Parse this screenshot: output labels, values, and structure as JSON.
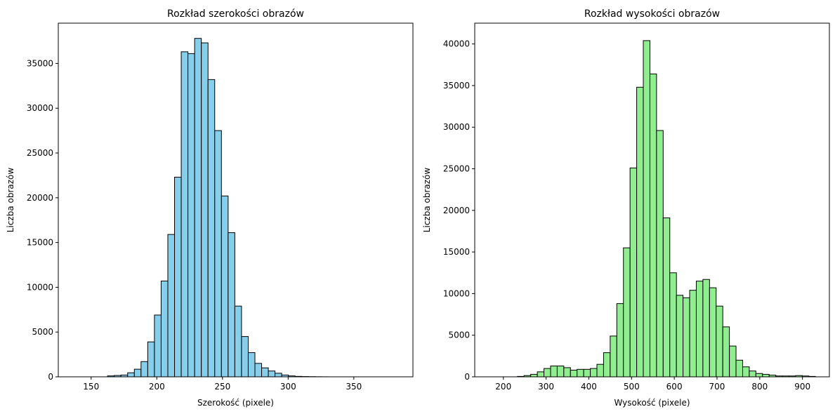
{
  "chart_data": [
    {
      "type": "bar",
      "subtype": "histogram",
      "title": "Rozkład szerokości obrazów",
      "xlabel": "Szerokość (pixele)",
      "ylabel": "Liczba obrazów",
      "xlim": [
        125,
        395
      ],
      "ylim": [
        0,
        39500
      ],
      "xticks": [
        150,
        200,
        250,
        300,
        350
      ],
      "yticks": [
        0,
        5000,
        10000,
        15000,
        20000,
        25000,
        30000,
        35000
      ],
      "bar_color": "#87CEEB",
      "edge_color": "#000000",
      "grid": false,
      "bins_start": 137,
      "bin_width": 5.1,
      "values": [
        0,
        0,
        0,
        0,
        0,
        100,
        150,
        200,
        450,
        850,
        1700,
        3900,
        6900,
        10700,
        15900,
        22300,
        36300,
        36100,
        37800,
        37300,
        33200,
        27500,
        20200,
        16100,
        7900,
        4500,
        2700,
        1500,
        1000,
        650,
        400,
        200,
        100,
        50,
        30,
        20,
        10,
        5,
        0,
        0,
        0,
        0,
        0,
        0,
        0,
        0,
        0,
        0,
        0,
        0
      ]
    },
    {
      "type": "bar",
      "subtype": "histogram",
      "title": "Rozkład wysokości obrazów",
      "xlabel": "Wysokość (pixele)",
      "ylabel": "Liczba obrazów",
      "xlim": [
        133,
        963
      ],
      "ylim": [
        0,
        42500
      ],
      "xticks": [
        200,
        300,
        400,
        500,
        600,
        700,
        800,
        900
      ],
      "yticks": [
        0,
        5000,
        10000,
        15000,
        20000,
        25000,
        30000,
        35000,
        40000
      ],
      "bar_color": "#90EE90",
      "edge_color": "#000000",
      "grid": false,
      "bins_start": 233,
      "bin_width": 15.5,
      "values": [
        50,
        150,
        300,
        600,
        1000,
        1300,
        1300,
        1100,
        800,
        900,
        900,
        1000,
        1500,
        2900,
        4900,
        8800,
        15500,
        25100,
        34800,
        40400,
        36400,
        29600,
        19100,
        12500,
        9800,
        9500,
        10400,
        11500,
        11700,
        10700,
        8500,
        6000,
        3700,
        2000,
        1200,
        700,
        400,
        300,
        200,
        100,
        100,
        100,
        150,
        100,
        50
      ]
    }
  ]
}
